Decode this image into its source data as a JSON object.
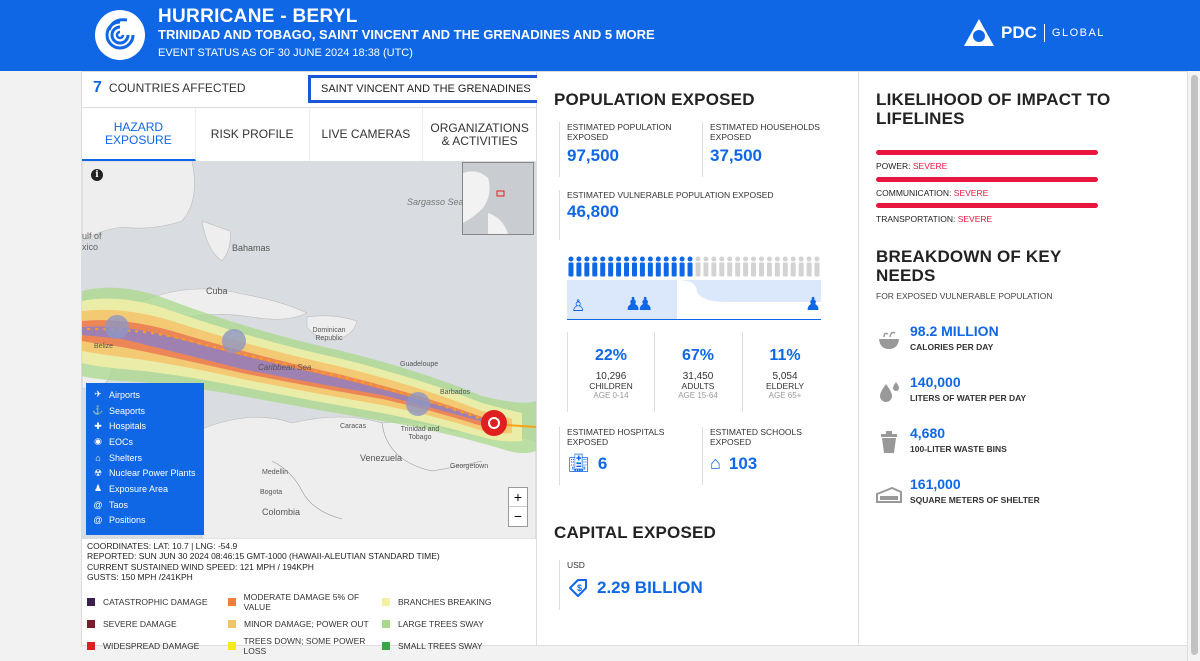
{
  "header": {
    "title": "HURRICANE - BERYL",
    "subtitle": "TRINIDAD AND TOBAGO, SAINT VINCENT AND THE GRENADINES AND 5 MORE",
    "status": "EVENT STATUS AS OF 30 JUNE 2024 18:38 (UTC)",
    "brand": "PDC",
    "brand_suffix": "GLOBAL",
    "color": "#0f67e6"
  },
  "countries": {
    "count": "7",
    "label": "COUNTRIES AFFECTED",
    "selected": "SAINT VINCENT AND THE GRENADINES"
  },
  "tabs": [
    {
      "label": "HAZARD EXPOSURE",
      "active": true
    },
    {
      "label": "RISK PROFILE",
      "active": false
    },
    {
      "label": "LIVE CAMERAS",
      "active": false
    },
    {
      "label": "ORGANIZATIONS & ACTIVITIES",
      "active": false
    }
  ],
  "map": {
    "places": [
      "Gulf of Mexico",
      "Bahamas",
      "Cuba",
      "Dominican Republic",
      "Belize",
      "Caribbean Sea",
      "Guadeloupe",
      "Barbados",
      "Trinidad and Tobago",
      "Caracas",
      "Medellin",
      "Venezuela",
      "Georgetown",
      "Bogota",
      "Colombia",
      "Sargasso Sea"
    ],
    "legend": [
      {
        "label": "Airports",
        "icon": "airplane-icon"
      },
      {
        "label": "Seaports",
        "icon": "anchor-icon"
      },
      {
        "label": "Hospitals",
        "icon": "hospital-icon"
      },
      {
        "label": "EOCs",
        "icon": "eoc-icon"
      },
      {
        "label": "Shelters",
        "icon": "shelter-icon"
      },
      {
        "label": "Nuclear Power Plants",
        "icon": "nuclear-icon"
      },
      {
        "label": "Exposure Area",
        "icon": "person-icon"
      },
      {
        "label": "Taos",
        "icon": "hurricane-icon"
      },
      {
        "label": "Positions",
        "icon": "hurricane-icon"
      }
    ],
    "zoom_in": "+",
    "zoom_out": "−"
  },
  "coords": {
    "line1": "COORDINATES: LAT: 10.7 | LNG: -54.9",
    "line2": "REPORTED: SUN JUN 30 2024 08:46:15 GMT-1000 (HAWAII-ALEUTIAN STANDARD TIME)",
    "line3": "CURRENT SUSTAINED WIND SPEED: 121 MPH / 194KPH",
    "line4": "GUSTS: 150 MPH /241KPH"
  },
  "severity": [
    {
      "label": "CATASTROPHIC DAMAGE",
      "color": "#3b1f4f"
    },
    {
      "label": "MODERATE DAMAGE 5% OF VALUE",
      "color": "#f07f3c"
    },
    {
      "label": "BRANCHES BREAKING",
      "color": "#f3f0a8"
    },
    {
      "label": "SEVERE DAMAGE",
      "color": "#7a1c2e"
    },
    {
      "label": "MINOR DAMAGE; POWER OUT",
      "color": "#f5c26a"
    },
    {
      "label": "LARGE TREES SWAY",
      "color": "#a8d88a"
    },
    {
      "label": "WIDESPREAD DAMAGE",
      "color": "#e02020"
    },
    {
      "label": "TREES DOWN; SOME POWER LOSS",
      "color": "#f4ea1c"
    },
    {
      "label": "SMALL TREES SWAY",
      "color": "#3aa648"
    }
  ],
  "population": {
    "title": "POPULATION EXPOSED",
    "est_pop_label": "ESTIMATED POPULATION EXPOSED",
    "est_pop": "97,500",
    "households_label": "ESTIMATED HOUSEHOLDS EXPOSED",
    "households": "37,500",
    "vulnerable_label": "ESTIMATED VULNERABLE POPULATION EXPOSED",
    "vulnerable": "46,800",
    "children": {
      "pct": "22%",
      "count": "10,296",
      "label": "CHILDREN",
      "age": "AGE 0-14",
      "share": 0.22
    },
    "adults": {
      "pct": "67%",
      "count": "31,450",
      "label": "ADULTS",
      "age": "AGE 15-64",
      "share": 0.67
    },
    "elderly": {
      "pct": "11%",
      "count": "5,054",
      "label": "ELDERLY",
      "age": "AGE 65+",
      "share": 0.11
    },
    "hospitals_label": "ESTIMATED HOSPITALS EXPOSED",
    "hospitals": "6",
    "schools_label": "ESTIMATED SCHOOLS EXPOSED",
    "schools": "103"
  },
  "capital": {
    "title": "CAPITAL EXPOSED",
    "currency": "USD",
    "value": "2.29 BILLION"
  },
  "lifelines": {
    "title": "LIKELIHOOD OF IMPACT TO LIFELINES",
    "items": [
      {
        "name": "POWER:",
        "level": "SEVERE"
      },
      {
        "name": "COMMUNICATION:",
        "level": "SEVERE"
      },
      {
        "name": "TRANSPORTATION:",
        "level": "SEVERE"
      }
    ]
  },
  "needs": {
    "title": "BREAKDOWN OF KEY NEEDS",
    "subtitle": "FOR EXPOSED VULNERABLE POPULATION",
    "items": [
      {
        "value": "98.2 MILLION",
        "label": "CALORIES PER DAY",
        "icon": "food-bowl-icon"
      },
      {
        "value": "140,000",
        "label": "LITERS OF WATER PER DAY",
        "icon": "water-drops-icon"
      },
      {
        "value": "4,680",
        "label": "100-LITER WASTE BINS",
        "icon": "waste-bin-icon"
      },
      {
        "value": "161,000",
        "label": "SQUARE METERS OF SHELTER",
        "icon": "shelter-tent-icon"
      }
    ]
  }
}
